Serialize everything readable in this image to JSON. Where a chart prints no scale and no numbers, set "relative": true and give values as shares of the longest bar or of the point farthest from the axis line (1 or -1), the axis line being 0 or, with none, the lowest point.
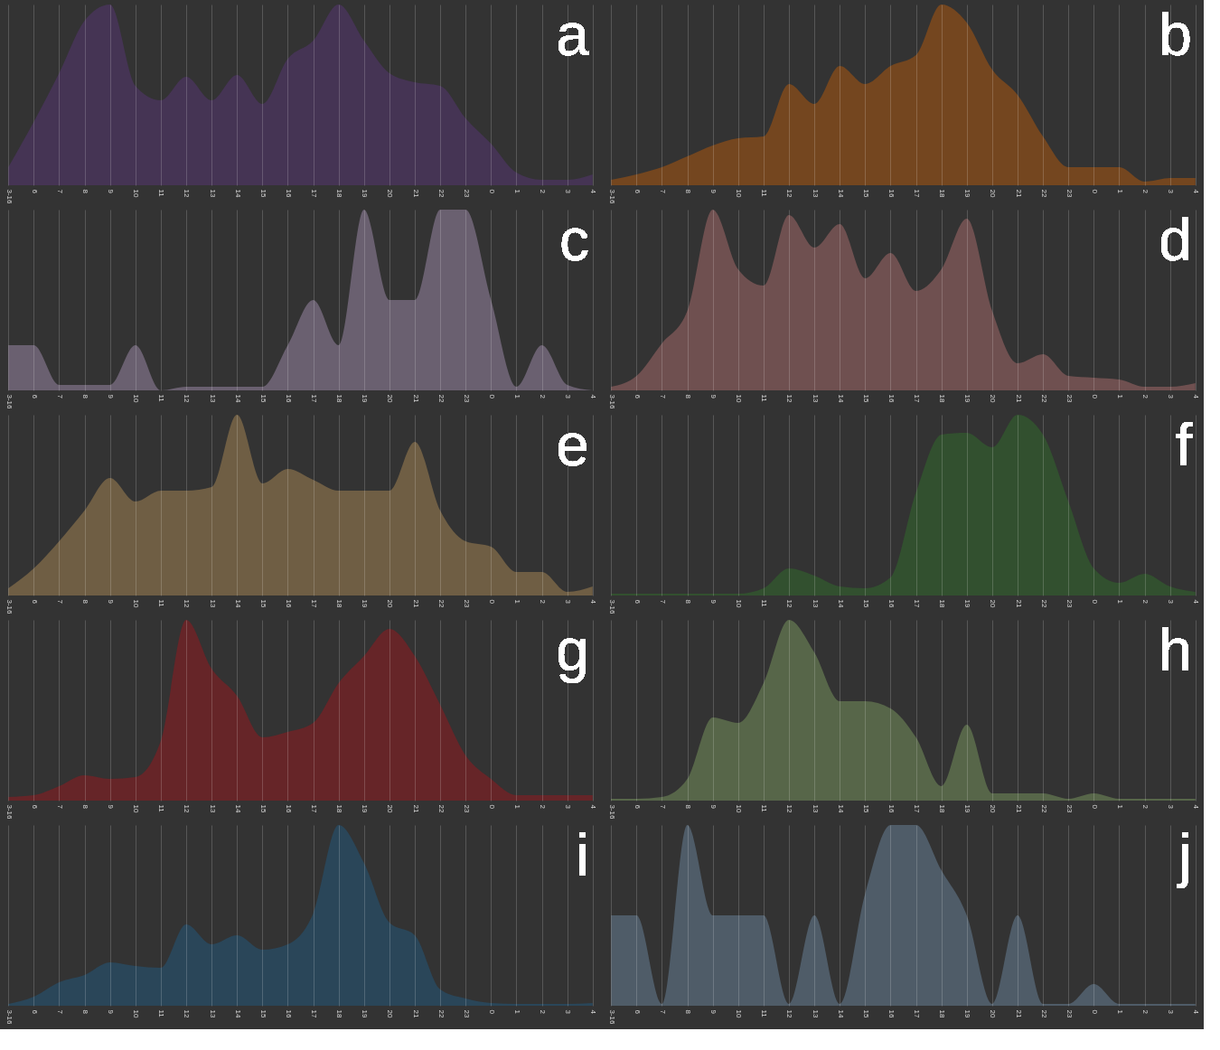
{
  "chart_data": [
    {
      "type": "area",
      "title": "a",
      "relative": true,
      "grid": "x",
      "color": "#453454",
      "categories": [
        "3-16",
        "6",
        "7",
        "8",
        "9",
        "10",
        "11",
        "12",
        "13",
        "14",
        "15",
        "16",
        "17",
        "18",
        "19",
        "20",
        "21",
        "22",
        "23",
        "0",
        "1",
        "2",
        "3",
        "4"
      ],
      "values": [
        0.1,
        0.35,
        0.62,
        0.91,
        1.0,
        0.55,
        0.47,
        0.6,
        0.47,
        0.61,
        0.45,
        0.7,
        0.8,
        1.0,
        0.8,
        0.62,
        0.57,
        0.55,
        0.37,
        0.23,
        0.07,
        0.03,
        0.03,
        0.06
      ]
    },
    {
      "type": "area",
      "title": "b",
      "relative": true,
      "grid": "x",
      "color": "#74461f",
      "categories": [
        "3-16",
        "6",
        "7",
        "8",
        "9",
        "10",
        "11",
        "12",
        "13",
        "14",
        "15",
        "16",
        "17",
        "18",
        "19",
        "20",
        "21",
        "22",
        "23",
        "0",
        "1",
        "2",
        "3",
        "4"
      ],
      "values": [
        0.03,
        0.06,
        0.1,
        0.16,
        0.22,
        0.26,
        0.27,
        0.56,
        0.45,
        0.66,
        0.56,
        0.66,
        0.72,
        1.0,
        0.9,
        0.64,
        0.5,
        0.27,
        0.1,
        0.1,
        0.1,
        0.02,
        0.04,
        0.04
      ]
    },
    {
      "type": "area",
      "title": "c",
      "relative": true,
      "grid": "x",
      "color": "#6a6070",
      "categories": [
        "3-16",
        "6",
        "7",
        "8",
        "9",
        "10",
        "11",
        "12",
        "13",
        "14",
        "15",
        "16",
        "17",
        "18",
        "19",
        "20",
        "21",
        "22",
        "23",
        "0",
        "1",
        "2",
        "3",
        "4"
      ],
      "values": [
        0.25,
        0.25,
        0.03,
        0.03,
        0.03,
        0.25,
        0.0,
        0.02,
        0.02,
        0.02,
        0.02,
        0.25,
        0.5,
        0.25,
        1.0,
        0.5,
        0.5,
        1.0,
        1.0,
        0.5,
        0.02,
        0.25,
        0.03,
        0.0
      ]
    },
    {
      "type": "area",
      "title": "d",
      "relative": true,
      "grid": "x",
      "color": "#6f5050",
      "categories": [
        "3-16",
        "6",
        "7",
        "8",
        "9",
        "10",
        "11",
        "12",
        "13",
        "14",
        "15",
        "16",
        "17",
        "18",
        "19",
        "20",
        "21",
        "22",
        "23",
        "0",
        "1",
        "2",
        "3",
        "4"
      ],
      "values": [
        0.02,
        0.08,
        0.26,
        0.44,
        1.0,
        0.67,
        0.58,
        0.97,
        0.79,
        0.92,
        0.62,
        0.76,
        0.55,
        0.67,
        0.95,
        0.44,
        0.15,
        0.2,
        0.08,
        0.07,
        0.06,
        0.02,
        0.02,
        0.04
      ]
    },
    {
      "type": "area",
      "title": "e",
      "relative": true,
      "grid": "x",
      "color": "#6f5e44",
      "categories": [
        "3-16",
        "6",
        "7",
        "8",
        "9",
        "10",
        "11",
        "12",
        "13",
        "14",
        "15",
        "16",
        "17",
        "18",
        "19",
        "20",
        "21",
        "22",
        "23",
        "0",
        "1",
        "2",
        "3",
        "4"
      ],
      "values": [
        0.04,
        0.15,
        0.3,
        0.47,
        0.65,
        0.52,
        0.58,
        0.58,
        0.6,
        1.0,
        0.62,
        0.7,
        0.64,
        0.58,
        0.58,
        0.58,
        0.85,
        0.47,
        0.3,
        0.27,
        0.13,
        0.13,
        0.02,
        0.05
      ]
    },
    {
      "type": "area",
      "title": "f",
      "relative": true,
      "grid": "x",
      "color": "#32502f",
      "categories": [
        "3-16",
        "6",
        "7",
        "8",
        "9",
        "10",
        "11",
        "12",
        "13",
        "14",
        "15",
        "16",
        "17",
        "18",
        "19",
        "20",
        "21",
        "22",
        "23",
        "0",
        "1",
        "2",
        "3",
        "4"
      ],
      "values": [
        0.01,
        0.01,
        0.01,
        0.01,
        0.01,
        0.01,
        0.04,
        0.15,
        0.11,
        0.05,
        0.04,
        0.1,
        0.57,
        0.89,
        0.9,
        0.82,
        1.0,
        0.89,
        0.52,
        0.15,
        0.07,
        0.12,
        0.05,
        0.02
      ]
    },
    {
      "type": "area",
      "title": "g",
      "relative": true,
      "grid": "x",
      "color": "#662528",
      "categories": [
        "3-16",
        "6",
        "7",
        "8",
        "9",
        "10",
        "11",
        "12",
        "13",
        "14",
        "15",
        "16",
        "17",
        "18",
        "19",
        "20",
        "21",
        "22",
        "23",
        "0",
        "1",
        "2",
        "3",
        "4"
      ],
      "values": [
        0.02,
        0.03,
        0.08,
        0.14,
        0.12,
        0.13,
        0.33,
        1.0,
        0.73,
        0.58,
        0.35,
        0.38,
        0.43,
        0.65,
        0.8,
        0.95,
        0.8,
        0.53,
        0.25,
        0.12,
        0.03,
        0.03,
        0.03,
        0.03
      ]
    },
    {
      "type": "area",
      "title": "h",
      "relative": true,
      "grid": "x",
      "color": "#576649",
      "categories": [
        "3-16",
        "6",
        "7",
        "8",
        "9",
        "10",
        "11",
        "12",
        "13",
        "14",
        "15",
        "16",
        "17",
        "18",
        "19",
        "20",
        "21",
        "22",
        "23",
        "0",
        "1",
        "2",
        "3",
        "4"
      ],
      "values": [
        0.01,
        0.01,
        0.02,
        0.12,
        0.46,
        0.43,
        0.65,
        1.0,
        0.82,
        0.55,
        0.55,
        0.51,
        0.35,
        0.08,
        0.42,
        0.04,
        0.04,
        0.04,
        0.01,
        0.04,
        0.01,
        0.01,
        0.01,
        0.01
      ]
    },
    {
      "type": "area",
      "title": "i",
      "relative": true,
      "grid": "x",
      "color": "#2a4659",
      "categories": [
        "3-16",
        "6",
        "7",
        "8",
        "9",
        "10",
        "11",
        "12",
        "13",
        "14",
        "15",
        "16",
        "17",
        "18",
        "19",
        "20",
        "21",
        "22",
        "23",
        "0",
        "1",
        "2",
        "3",
        "4"
      ],
      "values": [
        0.01,
        0.05,
        0.13,
        0.17,
        0.24,
        0.22,
        0.21,
        0.45,
        0.34,
        0.39,
        0.31,
        0.34,
        0.51,
        1.0,
        0.79,
        0.46,
        0.39,
        0.09,
        0.04,
        0.015,
        0.01,
        0.01,
        0.01,
        0.015
      ]
    },
    {
      "type": "area",
      "title": "j",
      "relative": true,
      "grid": "x",
      "color": "#4f5c68",
      "categories": [
        "3-16",
        "6",
        "7",
        "8",
        "9",
        "10",
        "11",
        "12",
        "13",
        "14",
        "15",
        "16",
        "17",
        "18",
        "19",
        "20",
        "21",
        "22",
        "23",
        "0",
        "1",
        "2",
        "3",
        "4"
      ],
      "values": [
        0.5,
        0.5,
        0.01,
        1.0,
        0.5,
        0.5,
        0.5,
        0.01,
        0.5,
        0.01,
        0.62,
        1.0,
        1.0,
        0.75,
        0.5,
        0.01,
        0.5,
        0.01,
        0.01,
        0.12,
        0.01,
        0.01,
        0.01,
        0.01
      ]
    }
  ]
}
